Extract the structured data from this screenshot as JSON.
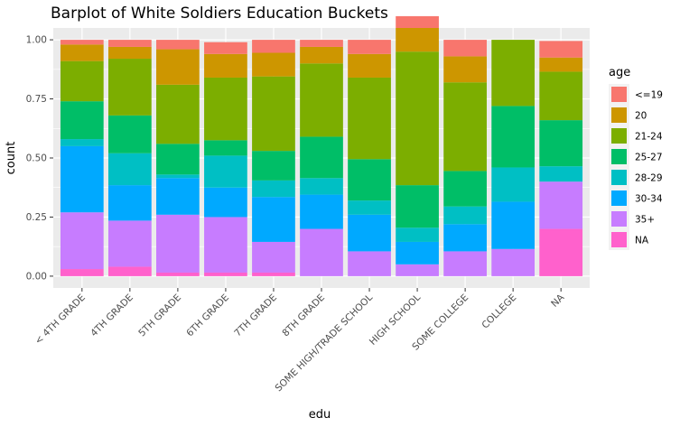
{
  "chart_data": {
    "type": "bar",
    "stacked": true,
    "normalized": true,
    "title": "Barplot of White Soldiers Education Buckets",
    "xlabel": "edu",
    "ylabel": "count",
    "ylim": [
      0,
      1
    ],
    "yticks": [
      0,
      0.25,
      0.5,
      0.75,
      1
    ],
    "ytick_labels": [
      "0.00",
      "0.25",
      "0.50",
      "0.75",
      "1.00"
    ],
    "grid": true,
    "legend_position": "right",
    "legend_title": "age",
    "categories": [
      "< 4TH GRADE",
      "4TH GRADE",
      "5TH GRADE",
      "6TH GRADE",
      "7TH GRADE",
      "8TH GRADE",
      "SOME HIGH/TRADE SCHOOL",
      "HIGH SCHOOL",
      "SOME COLLEGE",
      "COLLEGE",
      "NA"
    ],
    "series": [
      {
        "name": "<=19",
        "color": "#F8766D",
        "values": [
          0.02,
          0.03,
          0.04,
          0.05,
          0.055,
          0.03,
          0.06,
          0.05,
          0.07,
          0.0,
          0.07
        ]
      },
      {
        "name": "20",
        "color": "#CD9600",
        "values": [
          0.07,
          0.05,
          0.15,
          0.1,
          0.1,
          0.07,
          0.1,
          0.1,
          0.11,
          0.0,
          0.06
        ]
      },
      {
        "name": "21-24",
        "color": "#7CAE00",
        "values": [
          0.17,
          0.24,
          0.25,
          0.265,
          0.315,
          0.31,
          0.345,
          0.565,
          0.375,
          0.28,
          0.205
        ]
      },
      {
        "name": "25-27",
        "color": "#00BE67",
        "values": [
          0.16,
          0.16,
          0.13,
          0.065,
          0.125,
          0.175,
          0.175,
          0.18,
          0.15,
          0.26,
          0.195
        ]
      },
      {
        "name": "28-29",
        "color": "#00BFC4",
        "values": [
          0.03,
          0.135,
          0.015,
          0.135,
          0.07,
          0.07,
          0.06,
          0.06,
          0.075,
          0.145,
          0.065
        ]
      },
      {
        "name": "30-34",
        "color": "#00A9FF",
        "values": [
          0.28,
          0.15,
          0.155,
          0.125,
          0.19,
          0.145,
          0.155,
          0.095,
          0.115,
          0.2,
          0.0
        ]
      },
      {
        "name": "35+",
        "color": "#C77CFF",
        "values": [
          0.24,
          0.195,
          0.245,
          0.235,
          0.13,
          0.2,
          0.105,
          0.05,
          0.105,
          0.115,
          0.2
        ]
      },
      {
        "name": "NA",
        "color": "#FF61CC",
        "values": [
          0.03,
          0.04,
          0.015,
          0.015,
          0.015,
          0.0,
          0.0,
          0.0,
          0.0,
          0.0,
          0.2
        ]
      }
    ]
  }
}
